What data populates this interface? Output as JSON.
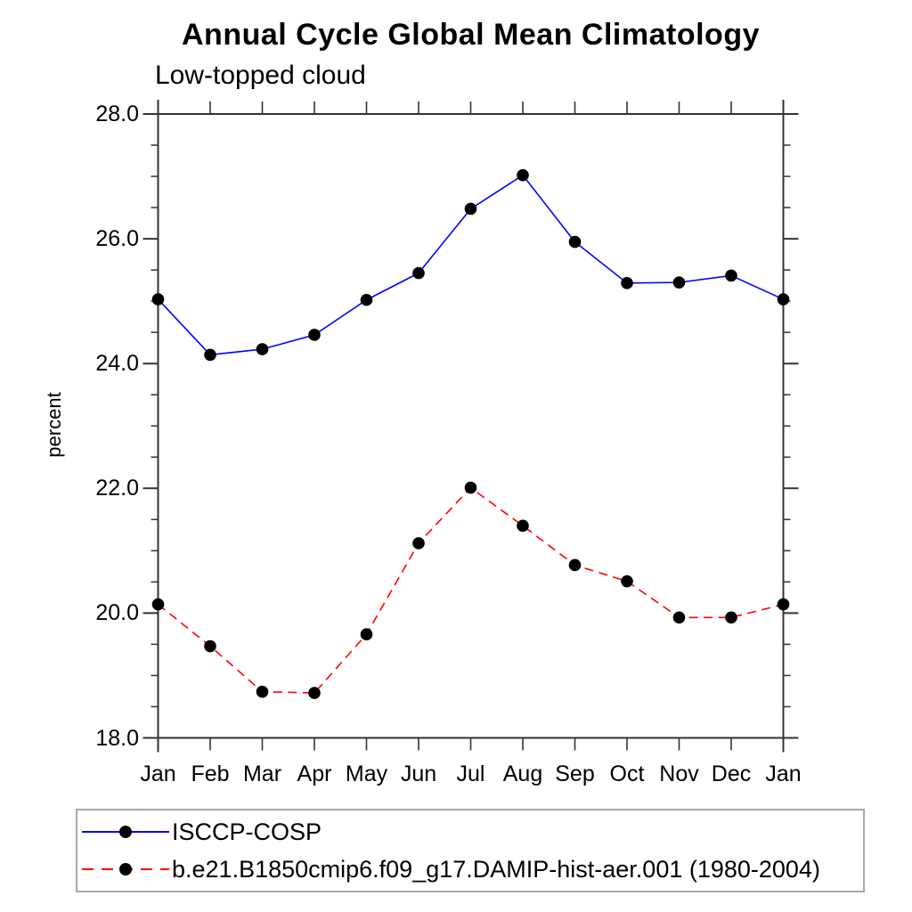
{
  "page": {
    "background": "#ffffff"
  },
  "chart_data": {
    "type": "line",
    "title": "Annual Cycle Global Mean Climatology",
    "subtitle": "Low-topped cloud",
    "ylabel": "percent",
    "ylim": [
      18.0,
      28.0
    ],
    "ytick_major_step": 2.0,
    "ytick_minor_step": 0.5,
    "ytick_labels": [
      "18.0",
      "20.0",
      "22.0",
      "24.0",
      "26.0",
      "28.0"
    ],
    "categories": [
      "Jan",
      "Feb",
      "Mar",
      "Apr",
      "May",
      "Jun",
      "Jul",
      "Aug",
      "Sep",
      "Oct",
      "Nov",
      "Dec",
      "Jan"
    ],
    "series": [
      {
        "name": "ISCCP-COSP",
        "color": "#0000ff",
        "line_style": "solid",
        "marker": "circle",
        "marker_color": "#000000",
        "values": [
          25.03,
          24.14,
          24.23,
          24.46,
          25.02,
          25.45,
          26.48,
          27.02,
          25.95,
          25.29,
          25.3,
          25.41,
          25.03
        ]
      },
      {
        "name": "b.e21.B1850cmip6.f09_g17.DAMIP-hist-aer.001 (1980-2004)",
        "color": "#ff0000",
        "line_style": "dashed",
        "marker": "circle",
        "marker_color": "#000000",
        "values": [
          20.14,
          19.47,
          18.74,
          18.72,
          19.66,
          21.12,
          22.01,
          21.4,
          20.77,
          20.51,
          19.93,
          19.93,
          20.14
        ]
      }
    ],
    "legend_position": "bottom",
    "grid": false,
    "axis_color": "#333333"
  }
}
